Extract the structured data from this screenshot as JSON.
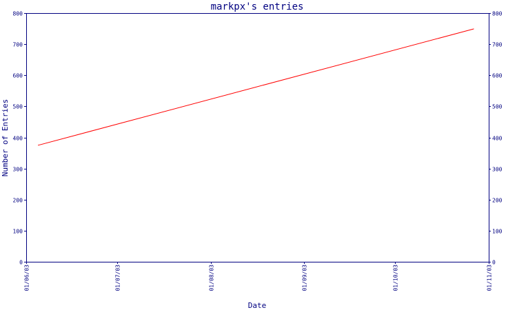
{
  "chart_data": {
    "type": "line",
    "title": "markpx's entries",
    "xlabel": "Date",
    "ylabel": "Number of Entries",
    "xlim": [
      "01/06/03",
      "01/11/03"
    ],
    "ylim": [
      0,
      800
    ],
    "grid": false,
    "x_tick_labels": [
      "01/06/03",
      "01/07/03",
      "01/08/03",
      "01/09/03",
      "01/10/03",
      "01/11/03"
    ],
    "y_tick_labels": [
      "0",
      "100",
      "200",
      "300",
      "400",
      "500",
      "600",
      "700",
      "800"
    ],
    "y_ticks_right": true,
    "series": [
      {
        "color": "#ff0000",
        "points": [
          {
            "x": "2003-06-05",
            "y": 375
          },
          {
            "x": "2003-10-27",
            "y": 749
          }
        ]
      }
    ]
  }
}
